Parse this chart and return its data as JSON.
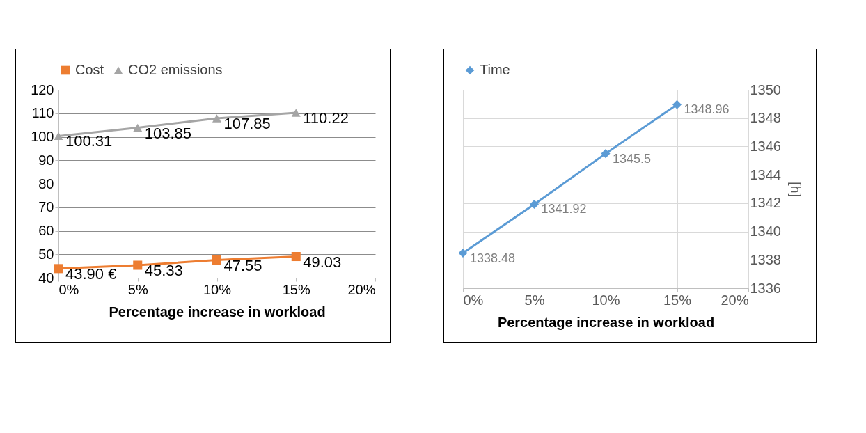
{
  "chart_data": [
    {
      "type": "line",
      "xlabel": "Percentage increase in workload",
      "x": [
        0,
        5,
        10,
        15
      ],
      "xlim": [
        0,
        20
      ],
      "xticks": [
        {
          "value": 0,
          "label": "0%"
        },
        {
          "value": 5,
          "label": "5%"
        },
        {
          "value": 10,
          "label": "10%"
        },
        {
          "value": 15,
          "label": "15%"
        },
        {
          "value": 20,
          "label": "20%"
        }
      ],
      "ylim": [
        40,
        120
      ],
      "yticks": [
        40,
        50,
        60,
        70,
        80,
        90,
        100,
        110,
        120
      ],
      "grid": "y",
      "legend": "top",
      "series": [
        {
          "name": "Cost",
          "color": "#ed7d31",
          "marker": "square",
          "values": [
            43.9,
            45.33,
            47.55,
            49.03
          ],
          "value_labels": [
            "43.90 €",
            "45.33",
            "47.55",
            "49.03"
          ]
        },
        {
          "name": "CO2 emissions",
          "color": "#a5a5a5",
          "marker": "triangle",
          "values": [
            100.31,
            103.85,
            107.85,
            110.22
          ],
          "value_labels": [
            "100.31",
            "103.85",
            "107.85",
            "110.22"
          ]
        }
      ]
    },
    {
      "type": "line",
      "xlabel": "Percentage increase in workload",
      "y2label": "[h]",
      "x": [
        0,
        5,
        10,
        15
      ],
      "xlim": [
        0,
        20
      ],
      "xticks": [
        {
          "value": 0,
          "label": "0%"
        },
        {
          "value": 5,
          "label": "5%"
        },
        {
          "value": 10,
          "label": "10%"
        },
        {
          "value": 15,
          "label": "15%"
        },
        {
          "value": 20,
          "label": "20%"
        }
      ],
      "y2lim": [
        1336,
        1350
      ],
      "y2ticks": [
        1336,
        1338,
        1340,
        1342,
        1344,
        1346,
        1348,
        1350
      ],
      "grid": true,
      "legend": "top",
      "data_labels": true,
      "series": [
        {
          "name": "Time",
          "color": "#5b9bd5",
          "marker": "diamond",
          "axis": "y2",
          "values": [
            1338.48,
            1341.92,
            1345.5,
            1348.96
          ]
        }
      ]
    }
  ]
}
